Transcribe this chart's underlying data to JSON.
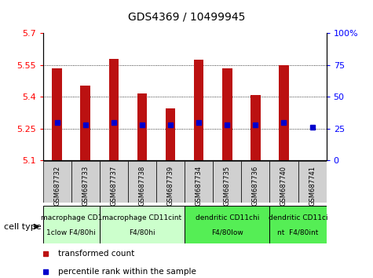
{
  "title": "GDS4369 / 10499945",
  "samples": [
    "GSM687732",
    "GSM687733",
    "GSM687737",
    "GSM687738",
    "GSM687739",
    "GSM687734",
    "GSM687735",
    "GSM687736",
    "GSM687740",
    "GSM687741"
  ],
  "transformed_counts": [
    5.535,
    5.455,
    5.58,
    5.415,
    5.345,
    5.575,
    5.535,
    5.41,
    5.55,
    5.1
  ],
  "percentile_ranks": [
    30,
    28,
    30,
    28,
    28,
    30,
    28,
    28,
    30,
    26
  ],
  "ylim_left": [
    5.1,
    5.7
  ],
  "ylim_right": [
    0,
    100
  ],
  "yticks_left": [
    5.1,
    5.25,
    5.4,
    5.55,
    5.7
  ],
  "yticks_right": [
    0,
    25,
    50,
    75,
    100
  ],
  "bar_color": "#bb1111",
  "dot_color": "#0000cc",
  "bar_bottom": 5.1,
  "cell_groups": [
    {
      "label1": "macrophage CD1",
      "label2": "1clow F4/80hi",
      "start": 0,
      "end": 2,
      "color": "#ccffcc"
    },
    {
      "label1": "macrophage CD11cint",
      "label2": "F4/80hi",
      "start": 2,
      "end": 5,
      "color": "#ccffcc"
    },
    {
      "label1": "dendritic CD11chi",
      "label2": "F4/80low",
      "start": 5,
      "end": 8,
      "color": "#55ee55"
    },
    {
      "label1": "dendritic CD11ci",
      "label2": "nt  F4/80int",
      "start": 8,
      "end": 10,
      "color": "#55ee55"
    }
  ],
  "legend_red": "transformed count",
  "legend_blue": "percentile rank within the sample",
  "cell_type_label": "cell type"
}
